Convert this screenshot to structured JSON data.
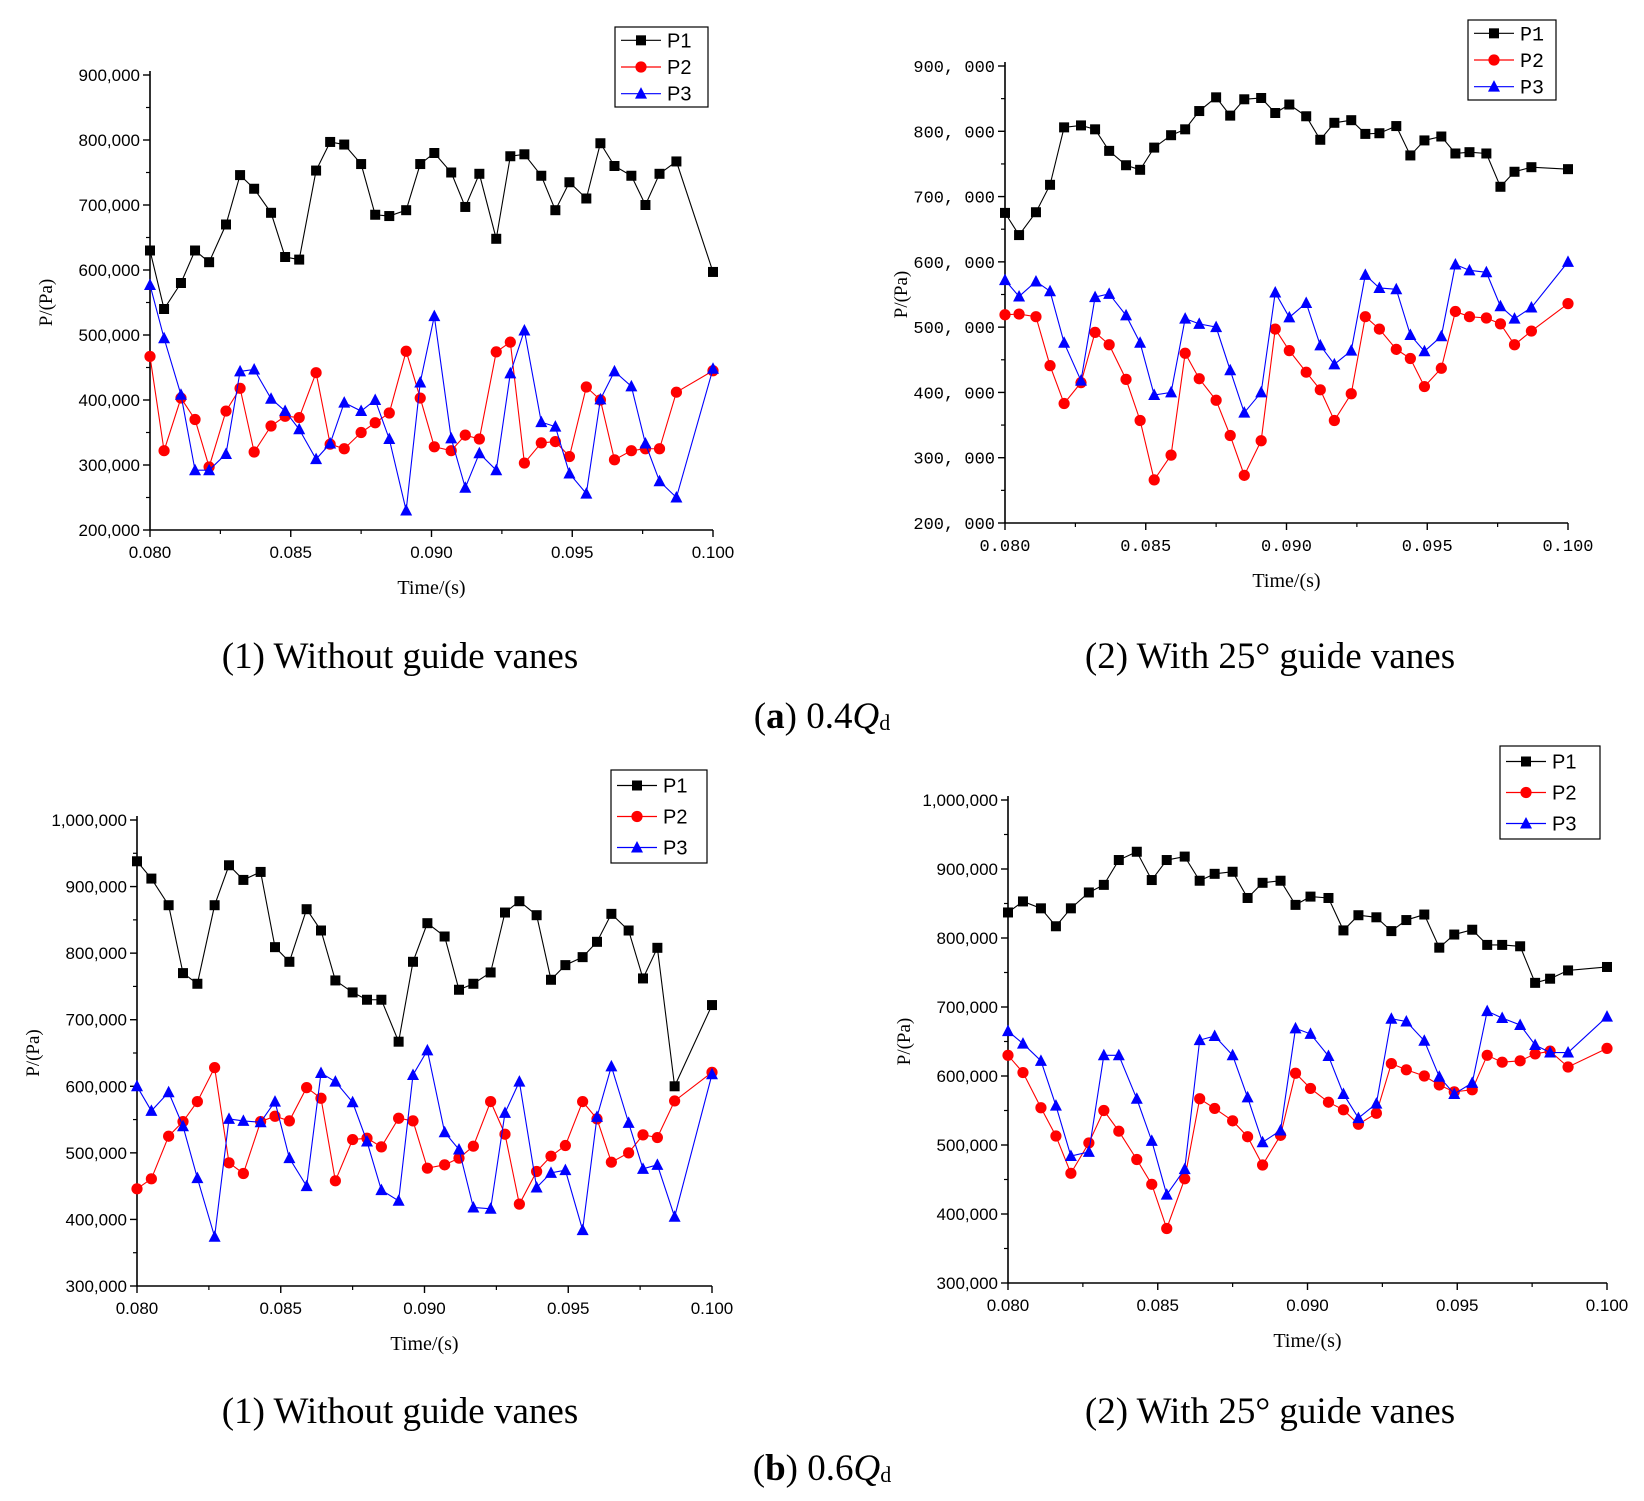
{
  "colors": {
    "P1": "#000000",
    "P2": "#ff0000",
    "P3": "#0000ff"
  },
  "captions": {
    "panel_left": "(1) Without guide vanes",
    "panel_right": "(2) With 25° guide vanes",
    "group_a": {
      "letter": "a",
      "q": "0.4",
      "Q": "Q",
      "sub": "d"
    },
    "group_b": {
      "letter": "b",
      "q": "0.6",
      "Q": "Q",
      "sub": "d"
    }
  },
  "chart_data": [
    {
      "id": "a1",
      "type": "line",
      "xlabel": "Time/(s)",
      "ylabel": "P/(Pa)",
      "xlim": [
        0.08,
        0.1
      ],
      "ylim": [
        200000,
        900000
      ],
      "xticks": [
        0.08,
        0.085,
        0.09,
        0.095,
        0.1
      ],
      "xtick_labels": [
        "0.080",
        "0.085",
        "0.090",
        "0.095",
        "0.100"
      ],
      "yticks": [
        200000,
        300000,
        400000,
        500000,
        600000,
        700000,
        800000,
        900000
      ],
      "ytick_labels": [
        "200,000",
        "300,000",
        "400,000",
        "500,000",
        "600,000",
        "700,000",
        "800,000",
        "900,000"
      ],
      "legend": [
        "P1",
        "P2",
        "P3"
      ],
      "x": [
        0.08,
        0.0805,
        0.0811,
        0.0816,
        0.0821,
        0.0827,
        0.0832,
        0.0837,
        0.0843,
        0.0848,
        0.0853,
        0.0859,
        0.0864,
        0.0869,
        0.0875,
        0.088,
        0.0885,
        0.0891,
        0.0896,
        0.0901,
        0.0907,
        0.0912,
        0.0917,
        0.0923,
        0.0928,
        0.0933,
        0.0939,
        0.0944,
        0.0949,
        0.0955,
        0.096,
        0.0965,
        0.0971,
        0.0976,
        0.0981,
        0.0987,
        0.1
      ],
      "series": [
        {
          "name": "P1",
          "marker": "square",
          "values": [
            630000,
            540000,
            580000,
            630000,
            612000,
            670000,
            746000,
            725000,
            688000,
            620000,
            616000,
            753000,
            797000,
            793000,
            763000,
            685000,
            683000,
            692000,
            763000,
            780000,
            750000,
            697000,
            748000,
            648000,
            775000,
            778000,
            745000,
            692000,
            735000,
            710000,
            795000,
            760000,
            745000,
            700000,
            748000,
            767000,
            597000
          ]
        },
        {
          "name": "P2",
          "marker": "circle",
          "values": [
            467000,
            322000,
            403000,
            370000,
            297000,
            383000,
            418000,
            320000,
            360000,
            375000,
            373000,
            442000,
            332000,
            325000,
            350000,
            365000,
            380000,
            475000,
            403000,
            328000,
            322000,
            346000,
            340000,
            474000,
            489000,
            303000,
            334000,
            336000,
            313000,
            420000,
            400000,
            308000,
            322000,
            325000,
            325000,
            412000,
            445000
          ]
        },
        {
          "name": "P3",
          "marker": "triangle",
          "values": [
            577000,
            495000,
            408000,
            292000,
            292000,
            317000,
            444000,
            447000,
            402000,
            383000,
            355000,
            309000,
            333000,
            396000,
            383000,
            400000,
            340000,
            230000,
            427000,
            529000,
            341000,
            265000,
            318000,
            292000,
            441000,
            507000,
            366000,
            359000,
            287000,
            256000,
            401000,
            444000,
            421000,
            333000,
            275000,
            250000,
            448000
          ]
        }
      ]
    },
    {
      "id": "a2",
      "type": "line",
      "xlabel": "Time/(s)",
      "ylabel": "P/(Pa)",
      "xlim": [
        0.08,
        0.1
      ],
      "ylim": [
        200000,
        900000
      ],
      "xticks": [
        0.08,
        0.085,
        0.09,
        0.095,
        0.1
      ],
      "xtick_labels": [
        "0.080",
        "0.085",
        "0.090",
        "0.095",
        "0.100"
      ],
      "yticks": [
        200000,
        300000,
        400000,
        500000,
        600000,
        700000,
        800000,
        900000
      ],
      "ytick_labels": [
        "200, 000",
        "300, 000",
        "400, 000",
        "500, 000",
        "600, 000",
        "700, 000",
        "800, 000",
        "900, 000"
      ],
      "legend": [
        "P1",
        "P2",
        "P3"
      ],
      "x": [
        0.08,
        0.0805,
        0.0811,
        0.0816,
        0.0821,
        0.0827,
        0.0832,
        0.0837,
        0.0843,
        0.0848,
        0.0853,
        0.0859,
        0.0864,
        0.0869,
        0.0875,
        0.088,
        0.0885,
        0.0891,
        0.0896,
        0.0901,
        0.0907,
        0.0912,
        0.0917,
        0.0923,
        0.0928,
        0.0933,
        0.0939,
        0.0944,
        0.0949,
        0.0955,
        0.096,
        0.0965,
        0.0971,
        0.0976,
        0.0981,
        0.0987,
        0.1
      ],
      "series": [
        {
          "name": "P1",
          "marker": "square",
          "values": [
            675000,
            641000,
            676000,
            718000,
            806000,
            809000,
            803000,
            770000,
            748000,
            741000,
            775000,
            794000,
            803000,
            831000,
            852000,
            824000,
            849000,
            851000,
            828000,
            841000,
            823000,
            787000,
            813000,
            817000,
            796000,
            797000,
            808000,
            763000,
            786000,
            792000,
            766000,
            768000,
            766000,
            715000,
            738000,
            745000,
            742000
          ]
        },
        {
          "name": "P2",
          "marker": "circle",
          "values": [
            519000,
            520000,
            516000,
            441000,
            383000,
            415000,
            492000,
            473000,
            420000,
            357000,
            266000,
            304000,
            460000,
            421000,
            388000,
            334000,
            273000,
            326000,
            497000,
            464000,
            431000,
            404000,
            357000,
            398000,
            516000,
            497000,
            466000,
            452000,
            409000,
            437000,
            524000,
            516000,
            514000,
            505000,
            473000,
            494000,
            536000
          ]
        },
        {
          "name": "P3",
          "marker": "triangle",
          "values": [
            572000,
            547000,
            570000,
            555000,
            476000,
            418000,
            546000,
            551000,
            518000,
            476000,
            396000,
            400000,
            513000,
            505000,
            500000,
            434000,
            369000,
            400000,
            553000,
            515000,
            537000,
            472000,
            443000,
            464000,
            580000,
            560000,
            558000,
            488000,
            463000,
            486000,
            596000,
            587000,
            584000,
            532000,
            513000,
            530000,
            600000
          ]
        }
      ]
    },
    {
      "id": "b1",
      "type": "line",
      "xlabel": "Time/(s)",
      "ylabel": "P/(Pa)",
      "xlim": [
        0.08,
        0.1
      ],
      "ylim": [
        300000,
        1000000
      ],
      "xticks": [
        0.08,
        0.085,
        0.09,
        0.095,
        0.1
      ],
      "xtick_labels": [
        "0.080",
        "0.085",
        "0.090",
        "0.095",
        "0.100"
      ],
      "yticks": [
        300000,
        400000,
        500000,
        600000,
        700000,
        800000,
        900000,
        1000000
      ],
      "ytick_labels": [
        "300,000",
        "400,000",
        "500,000",
        "600,000",
        "700,000",
        "800,000",
        "900,000",
        "1,000,000"
      ],
      "legend": [
        "P1",
        "P2",
        "P3"
      ],
      "x": [
        0.08,
        0.0805,
        0.0811,
        0.0816,
        0.0821,
        0.0827,
        0.0832,
        0.0837,
        0.0843,
        0.0848,
        0.0853,
        0.0859,
        0.0864,
        0.0869,
        0.0875,
        0.088,
        0.0885,
        0.0891,
        0.0896,
        0.0901,
        0.0907,
        0.0912,
        0.0917,
        0.0923,
        0.0928,
        0.0933,
        0.0939,
        0.0944,
        0.0949,
        0.0955,
        0.096,
        0.0965,
        0.0971,
        0.0976,
        0.0981,
        0.0987,
        0.1
      ],
      "series": [
        {
          "name": "P1",
          "marker": "square",
          "values": [
            938000,
            912000,
            872000,
            770000,
            754000,
            872000,
            932000,
            910000,
            922000,
            809000,
            787000,
            866000,
            834000,
            759000,
            741000,
            730000,
            730000,
            667000,
            787000,
            845000,
            825000,
            745000,
            754000,
            771000,
            861000,
            878000,
            857000,
            760000,
            782000,
            794000,
            817000,
            859000,
            834000,
            762000,
            808000,
            600000,
            722000
          ]
        },
        {
          "name": "P2",
          "marker": "circle",
          "values": [
            446000,
            461000,
            525000,
            547000,
            577000,
            628000,
            485000,
            469000,
            547000,
            555000,
            548000,
            598000,
            582000,
            458000,
            520000,
            522000,
            509000,
            552000,
            548000,
            477000,
            482000,
            492000,
            510000,
            577000,
            528000,
            423000,
            472000,
            495000,
            511000,
            577000,
            551000,
            486000,
            500000,
            527000,
            523000,
            578000,
            621000
          ]
        },
        {
          "name": "P3",
          "marker": "triangle",
          "values": [
            600000,
            563000,
            591000,
            540000,
            462000,
            374000,
            551000,
            548000,
            546000,
            577000,
            492000,
            450000,
            620000,
            607000,
            576000,
            517000,
            444000,
            428000,
            617000,
            654000,
            531000,
            505000,
            418000,
            416000,
            560000,
            607000,
            448000,
            470000,
            474000,
            384000,
            554000,
            630000,
            545000,
            476000,
            482000,
            404000,
            618000
          ]
        }
      ]
    },
    {
      "id": "b2",
      "type": "line",
      "xlabel": "Time/(s)",
      "ylabel": "P/(Pa)",
      "xlim": [
        0.08,
        0.1
      ],
      "ylim": [
        300000,
        1000000
      ],
      "xticks": [
        0.08,
        0.085,
        0.09,
        0.095,
        0.1
      ],
      "xtick_labels": [
        "0.080",
        "0.085",
        "0.090",
        "0.095",
        "0.100"
      ],
      "yticks": [
        300000,
        400000,
        500000,
        600000,
        700000,
        800000,
        900000,
        1000000
      ],
      "ytick_labels": [
        "300,000",
        "400,000",
        "500,000",
        "600,000",
        "700,000",
        "800,000",
        "900,000",
        "1,000,000"
      ],
      "legend": [
        "P1",
        "P2",
        "P3"
      ],
      "x": [
        0.08,
        0.0805,
        0.0811,
        0.0816,
        0.0821,
        0.0827,
        0.0832,
        0.0837,
        0.0843,
        0.0848,
        0.0853,
        0.0859,
        0.0864,
        0.0869,
        0.0875,
        0.088,
        0.0885,
        0.0891,
        0.0896,
        0.0901,
        0.0907,
        0.0912,
        0.0917,
        0.0923,
        0.0928,
        0.0933,
        0.0939,
        0.0944,
        0.0949,
        0.0955,
        0.096,
        0.0965,
        0.0971,
        0.0976,
        0.0981,
        0.0987,
        0.1
      ],
      "series": [
        {
          "name": "P1",
          "marker": "square",
          "values": [
            837000,
            853000,
            843000,
            817000,
            843000,
            866000,
            877000,
            913000,
            925000,
            884000,
            913000,
            918000,
            883000,
            893000,
            896000,
            858000,
            880000,
            883000,
            848000,
            860000,
            858000,
            811000,
            833000,
            830000,
            810000,
            826000,
            834000,
            786000,
            805000,
            812000,
            790000,
            790000,
            788000,
            735000,
            741000,
            753000,
            758000
          ]
        },
        {
          "name": "P2",
          "marker": "circle",
          "values": [
            630000,
            605000,
            554000,
            513000,
            459000,
            503000,
            550000,
            520000,
            479000,
            443000,
            379000,
            451000,
            567000,
            553000,
            535000,
            512000,
            471000,
            514000,
            604000,
            582000,
            562000,
            551000,
            530000,
            546000,
            618000,
            609000,
            600000,
            587000,
            577000,
            580000,
            630000,
            620000,
            622000,
            632000,
            636000,
            613000,
            640000
          ]
        },
        {
          "name": "P3",
          "marker": "triangle",
          "values": [
            665000,
            647000,
            622000,
            557000,
            484000,
            490000,
            630000,
            630000,
            567000,
            506000,
            428000,
            465000,
            652000,
            658000,
            630000,
            569000,
            504000,
            521000,
            669000,
            661000,
            629000,
            574000,
            539000,
            560000,
            683000,
            679000,
            651000,
            599000,
            574000,
            590000,
            694000,
            684000,
            674000,
            645000,
            634000,
            634000,
            686000
          ]
        }
      ]
    }
  ]
}
